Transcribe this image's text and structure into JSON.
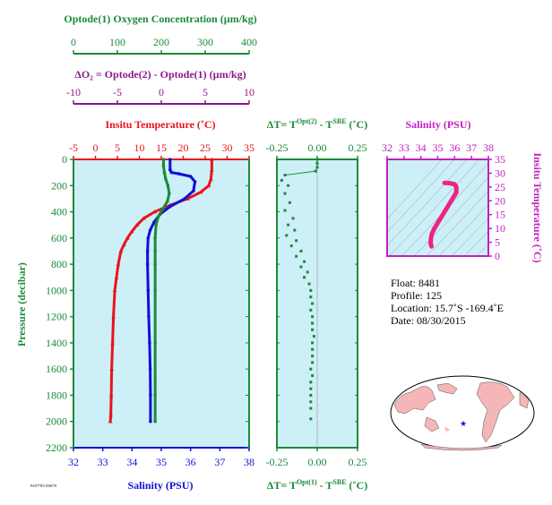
{
  "colors": {
    "temperature": "#e8141b",
    "salinity": "#1010d8",
    "oxygen": "#1a8a3a",
    "delta": "#8a1a8a",
    "panel_bg": "#cdeff7",
    "pink": "#ee2288",
    "land": "#f4b6b6"
  },
  "chart_data": [
    {
      "type": "line",
      "title": "",
      "ylabel": "Pressure (decibar)",
      "ylim": [
        2200,
        0
      ],
      "y_ticks": [
        "0",
        "200",
        "400",
        "600",
        "800",
        "1000",
        "1200",
        "1400",
        "1600",
        "1800",
        "2000",
        "2200"
      ],
      "axes": {
        "oxygen": {
          "label": "Optode(1) Oxygen Concentration (µm/kg)",
          "range": [
            0,
            400
          ],
          "ticks": [
            "0",
            "100",
            "200",
            "300",
            "400"
          ]
        },
        "delta_o2": {
          "label": "ΔO₂ = Optode(2) - Optode(1)   (µm/kg)",
          "range": [
            -10,
            10
          ],
          "ticks": [
            "-10",
            "-5",
            "0",
            "5",
            "10"
          ]
        },
        "temperature": {
          "label": "Insitu Temperature (˚C)",
          "range": [
            -5,
            35
          ],
          "ticks": [
            "-5",
            "0",
            "5",
            "10",
            "15",
            "20",
            "25",
            "30",
            "35"
          ]
        },
        "salinity": {
          "label": "Salinity (PSU)",
          "range": [
            32,
            38
          ],
          "ticks": [
            "32",
            "33",
            "34",
            "35",
            "36",
            "37",
            "38"
          ]
        }
      },
      "series": [
        {
          "name": "Insitu Temperature",
          "x": [
            26.5,
            26.5,
            26.3,
            25.8,
            24,
            21,
            17,
            13.5,
            11,
            9.5,
            8.3,
            7.3,
            6.5,
            5.8,
            5.2,
            4.8,
            4.4,
            4.1,
            3.9,
            3.7,
            3.6,
            3.5,
            3.4
          ],
          "y": [
            0,
            80,
            150,
            200,
            250,
            300,
            350,
            400,
            450,
            500,
            550,
            600,
            650,
            700,
            800,
            900,
            1000,
            1200,
            1400,
            1600,
            1800,
            1950,
            2000
          ]
        },
        {
          "name": "Salinity",
          "x": [
            35.3,
            35.3,
            35.35,
            35.6,
            36.0,
            36.15,
            36.1,
            35.8,
            35.3,
            34.95,
            34.75,
            34.62,
            34.55,
            34.53,
            34.53,
            34.55,
            34.57,
            34.6,
            34.62,
            34.63,
            34.63
          ],
          "y": [
            0,
            80,
            100,
            110,
            130,
            170,
            240,
            300,
            360,
            420,
            480,
            540,
            600,
            700,
            800,
            1000,
            1200,
            1400,
            1600,
            1800,
            2000
          ]
        },
        {
          "name": "Optode(1) Oxygen",
          "x": [
            205,
            205,
            207,
            210,
            215,
            218,
            214,
            203,
            193,
            188,
            186,
            186,
            186,
            186,
            186,
            186,
            186
          ],
          "y": [
            0,
            50,
            100,
            150,
            200,
            260,
            320,
            380,
            440,
            500,
            600,
            700,
            800,
            1000,
            1400,
            1800,
            2000
          ]
        }
      ]
    },
    {
      "type": "scatter",
      "title": "",
      "xlabel_top": "ΔT= T^Opt(2) - T^SBE (˚C)",
      "xlabel_bottom": "ΔT= T^Opt(1) - T^SBE (˚C)",
      "xlim": [
        -0.25,
        0.25
      ],
      "x_ticks": [
        "-0.25",
        "0.00",
        "0.25"
      ],
      "ylim": [
        2200,
        0
      ],
      "series": [
        {
          "name": "ΔT Opt(1)",
          "x": [
            0,
            0,
            0,
            -0.01,
            -0.2,
            -0.22,
            -0.18,
            -0.2,
            -0.17,
            -0.2,
            -0.15,
            -0.18,
            -0.14,
            -0.19,
            -0.13,
            -0.16,
            -0.1,
            -0.13,
            -0.08,
            -0.1,
            -0.06,
            -0.08,
            -0.05,
            -0.04,
            -0.04,
            -0.03,
            -0.04,
            -0.03,
            -0.03,
            -0.03,
            -0.02,
            -0.03,
            -0.03,
            -0.03,
            -0.03,
            -0.04,
            -0.03,
            -0.04,
            -0.04,
            -0.04,
            -0.04,
            -0.04,
            -0.04
          ],
          "y": [
            0,
            30,
            60,
            90,
            120,
            160,
            200,
            260,
            330,
            390,
            450,
            500,
            540,
            580,
            620,
            660,
            700,
            740,
            780,
            820,
            860,
            900,
            950,
            1000,
            1050,
            1100,
            1150,
            1200,
            1250,
            1300,
            1350,
            1400,
            1450,
            1500,
            1550,
            1600,
            1650,
            1700,
            1750,
            1800,
            1850,
            1900,
            1980
          ]
        }
      ]
    },
    {
      "type": "line",
      "title": "",
      "xlabel": "Salinity (PSU)",
      "xlim": [
        32,
        38
      ],
      "x_ticks": [
        "32",
        "33",
        "34",
        "35",
        "36",
        "37",
        "38"
      ],
      "ylabel": "Insitu Temperature (˚C)",
      "ylim": [
        0,
        35
      ],
      "y_ticks": [
        "0",
        "5",
        "10",
        "15",
        "20",
        "25",
        "30",
        "35"
      ],
      "series": [
        {
          "name": "T-S",
          "x": [
            35.4,
            35.7,
            36.0,
            36.1,
            36.1,
            35.9,
            35.6,
            35.3,
            35.0,
            34.8,
            34.65,
            34.6,
            34.58,
            34.6,
            34.63
          ],
          "y": [
            26.5,
            26.4,
            26,
            25,
            23,
            21,
            18,
            15,
            12,
            10,
            8,
            6.5,
            5,
            4,
            3.5
          ]
        }
      ]
    }
  ],
  "info": {
    "float": "Float:  8481",
    "profile": "Profile:  125",
    "location": "Location:  15.7˚S  -169.4˚E",
    "date": "Date:  08/30/2015"
  },
  "footer_small": "PA0778/5 8/08/70"
}
